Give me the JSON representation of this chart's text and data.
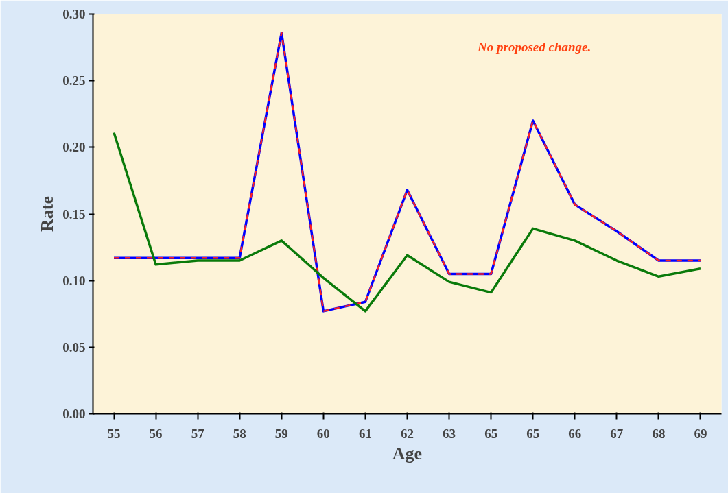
{
  "chart_data": {
    "type": "line",
    "xlabel": "Age",
    "ylabel": "Rate",
    "categories": [
      "55",
      "56",
      "57",
      "58",
      "59",
      "60",
      "61",
      "62",
      "63",
      "65",
      "65",
      "66",
      "67",
      "68",
      "69"
    ],
    "series": [
      {
        "color": "#0000ff",
        "line_style": "solid",
        "values": [
          0.117,
          0.117,
          0.117,
          0.117,
          0.286,
          0.077,
          0.084,
          0.168,
          0.105,
          0.105,
          0.22,
          0.157,
          0.137,
          0.115,
          0.115
        ]
      },
      {
        "color": "#ff2020",
        "line_style": "dashed",
        "values": [
          0.117,
          0.117,
          0.117,
          0.117,
          0.286,
          0.077,
          0.084,
          0.168,
          0.105,
          0.105,
          0.22,
          0.157,
          0.137,
          0.115,
          0.115
        ]
      },
      {
        "color": "#0a7a0a",
        "line_style": "solid",
        "values": [
          0.211,
          0.112,
          0.115,
          0.115,
          0.13,
          0.102,
          0.077,
          0.119,
          0.099,
          0.091,
          0.139,
          0.13,
          0.115,
          0.103,
          0.109
        ]
      }
    ],
    "ylim": [
      0,
      0.3
    ],
    "yticks": [
      {
        "value": 0,
        "label": "0.00"
      },
      0.05,
      {
        "value": 0.1,
        "label": "0.10"
      },
      0.15,
      {
        "value": 0.2,
        "label": "0.20"
      },
      0.25,
      {
        "value": 0.3,
        "label": "0.30"
      }
    ],
    "grid": false,
    "marker": "none",
    "annotations": [
      "No proposed change."
    ]
  }
}
